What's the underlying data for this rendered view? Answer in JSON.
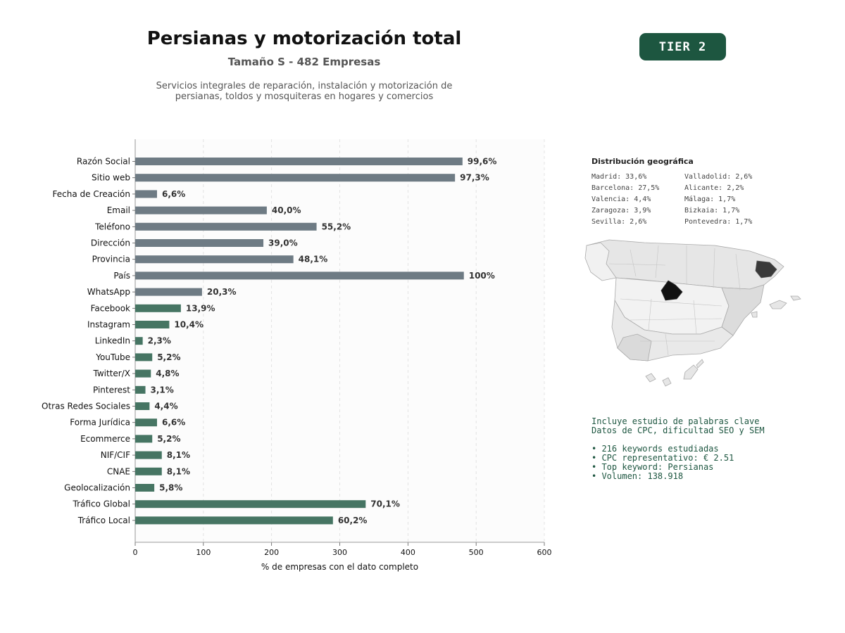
{
  "header": {
    "title": "Persianas y motorización total",
    "subtitle": "Tamaño S - 482 Empresas",
    "description_line1": "Servicios integrales de reparación, instalación y motorización de",
    "description_line2": "persianas, toldos y mosquiteras en hogares y comercios",
    "tier": "TIER 2"
  },
  "colors": {
    "gray_bar": "#6e7b84",
    "green_bar": "#467563",
    "badge": "#1d5640",
    "map_highlight": "#111111",
    "map_secondary": "#3a3a3a"
  },
  "chart_data": {
    "type": "bar",
    "orientation": "horizontal",
    "categories": [
      "Razón Social",
      "Sitio web",
      "Fecha de Creación",
      "Email",
      "Teléfono",
      "Dirección",
      "Provincia",
      "País",
      "WhatsApp",
      "Facebook",
      "Instagram",
      "LinkedIn",
      "YouTube",
      "Twitter/X",
      "Pinterest",
      "Otras Redes Sociales",
      "Forma Jurídica",
      "Ecommerce",
      "NIF/CIF",
      "CNAE",
      "Geolocalización",
      "Tráfico Global",
      "Tráfico Local"
    ],
    "values": [
      480,
      469,
      32,
      193,
      266,
      188,
      232,
      482,
      98,
      67,
      50,
      11,
      25,
      23,
      15,
      21,
      32,
      25,
      39,
      39,
      28,
      338,
      290
    ],
    "labels": [
      "99,6%",
      "97,3%",
      "6,6%",
      "40,0%",
      "55,2%",
      "39,0%",
      "48,1%",
      "100%",
      "20,3%",
      "13,9%",
      "10,4%",
      "2,3%",
      "5,2%",
      "4,8%",
      "3,1%",
      "4,4%",
      "6,6%",
      "5,2%",
      "8,1%",
      "8,1%",
      "5,8%",
      "70,1%",
      "60,2%"
    ],
    "group": [
      "gray",
      "gray",
      "gray",
      "gray",
      "gray",
      "gray",
      "gray",
      "gray",
      "gray",
      "green",
      "green",
      "green",
      "green",
      "green",
      "green",
      "green",
      "green",
      "green",
      "green",
      "green",
      "green",
      "green",
      "green"
    ],
    "xlim": [
      0,
      600
    ],
    "xticks": [
      0,
      100,
      200,
      300,
      400,
      500,
      600
    ],
    "xlabel": "% de empresas con el dato completo",
    "grid": "vertical dashed"
  },
  "geo": {
    "title": "Distribución geográfica",
    "items": [
      "Madrid: 33,6%",
      "Valladolid: 2,6%",
      "Barcelona: 27,5%",
      "Alicante: 2,2%",
      "Valencia: 4,4%",
      "Málaga: 1,7%",
      "Zaragoza: 3,9%",
      "Bizkaia: 1,7%",
      "Sevilla: 2,6%",
      "Pontevedra: 1,7%"
    ]
  },
  "keywords": {
    "line1": "Incluye estudio de palabras clave",
    "line2": "Datos de CPC, dificultad SEO y SEM",
    "bullets": [
      "• 216 keywords estudiadas",
      "• CPC representativo: € 2.51",
      "• Top keyword: Persianas",
      "• Volumen: 138.918"
    ]
  }
}
